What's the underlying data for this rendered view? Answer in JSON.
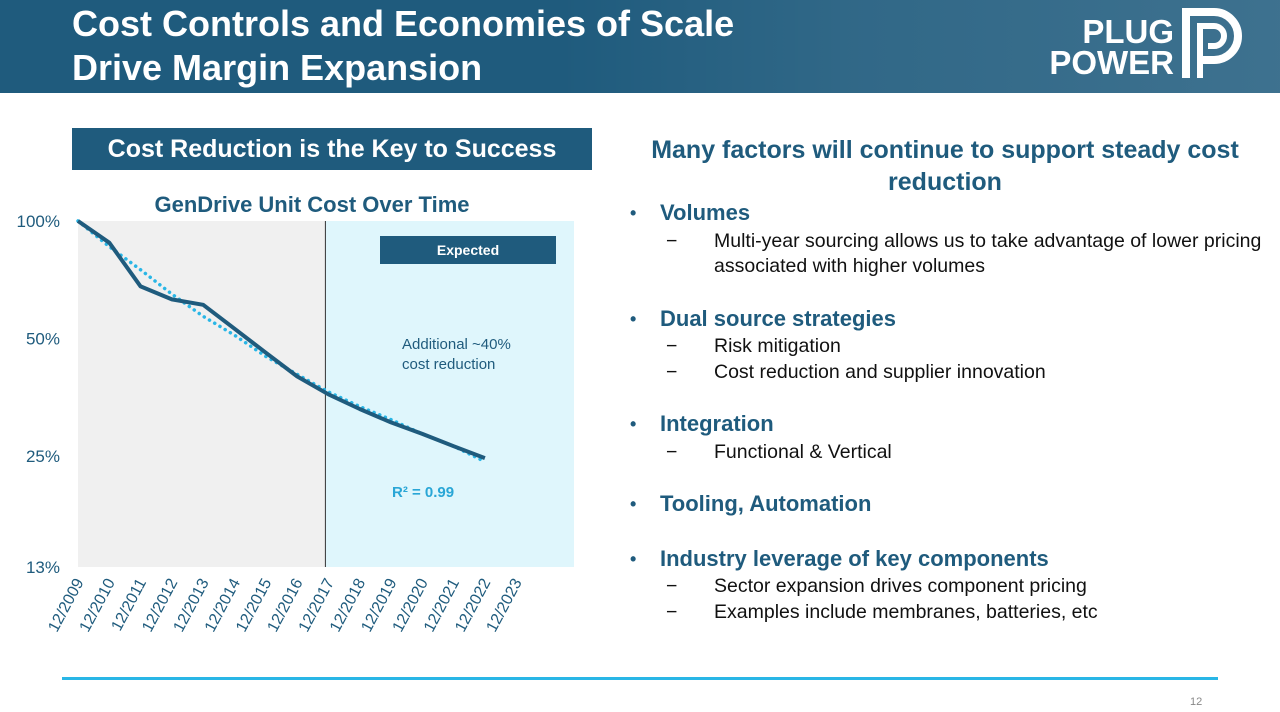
{
  "header": {
    "title_line1": "Cost Controls and Economies of Scale",
    "title_line2": "Drive Margin Expansion",
    "logo_line1": "PLUG",
    "logo_line2": "POWER",
    "logo_mark": "P"
  },
  "left_banner": "Cost Reduction is the Key to Success",
  "chart_data": {
    "type": "line",
    "title": "GenDrive Unit Cost Over Time",
    "y_scale": "log",
    "ylim": [
      13,
      100
    ],
    "y_ticks": [
      "100%",
      "50%",
      "25%",
      "13%"
    ],
    "y_tick_values": [
      100,
      50,
      25,
      13
    ],
    "categories": [
      "12/2009",
      "12/2010",
      "12/2011",
      "12/2012",
      "12/2013",
      "12/2014",
      "12/2015",
      "12/2016",
      "12/2017",
      "12/2018",
      "12/2019",
      "12/2020",
      "12/2021",
      "12/2022",
      "12/2023"
    ],
    "series": [
      {
        "name": "",
        "style": "solid",
        "x": [
          "12/2009",
          "12/2010",
          "12/2011",
          "12/2012",
          "12/2013",
          "12/2014",
          "12/2015",
          "12/2016",
          "12/2017",
          "12/2018",
          "12/2019",
          "12/2020",
          "12/2021",
          "12/2022"
        ],
        "values": [
          100,
          88,
          68,
          63,
          61,
          53,
          46,
          40,
          36,
          33,
          30.5,
          28.5,
          26.5,
          24.7
        ]
      },
      {
        "name": "",
        "style": "dotted",
        "x": [
          "12/2009",
          "12/2010",
          "12/2011",
          "12/2012",
          "12/2013",
          "12/2014",
          "12/2015",
          "12/2016",
          "12/2017",
          "12/2018",
          "12/2019",
          "12/2020",
          "12/2021",
          "12/2022"
        ],
        "values": [
          100,
          86,
          75,
          65,
          57,
          51,
          45,
          40.5,
          36.5,
          33.5,
          31,
          28.5,
          26.5,
          24.2
        ]
      }
    ],
    "divider_at": "12/2017",
    "expected_label": "Expected",
    "annotation": "Additional ~40%\ncost reduction",
    "r_squared": "R² = 0.99",
    "colors": {
      "actual": "#1f5b7d",
      "trend": "#29b6e6",
      "historic_bg": "#f0f0f0",
      "expected_bg": "#dff6fc"
    }
  },
  "right": {
    "heading": "Many factors will continue to support steady cost reduction",
    "bullet_char": "•",
    "dash_char": "−",
    "bullets": [
      {
        "label": "Volumes",
        "subs": [
          "Multi-year sourcing allows us to take advantage of lower pricing associated with higher volumes"
        ]
      },
      {
        "label": "Dual source strategies",
        "subs": [
          "Risk mitigation",
          "Cost reduction and supplier innovation"
        ]
      },
      {
        "label": "Integration",
        "subs": [
          "Functional & Vertical"
        ]
      },
      {
        "label": "Tooling, Automation",
        "subs": []
      },
      {
        "label": "Industry leverage of key components",
        "subs": [
          "Sector expansion drives component pricing",
          "Examples include membranes, batteries, etc"
        ]
      }
    ]
  },
  "page_number": "12"
}
